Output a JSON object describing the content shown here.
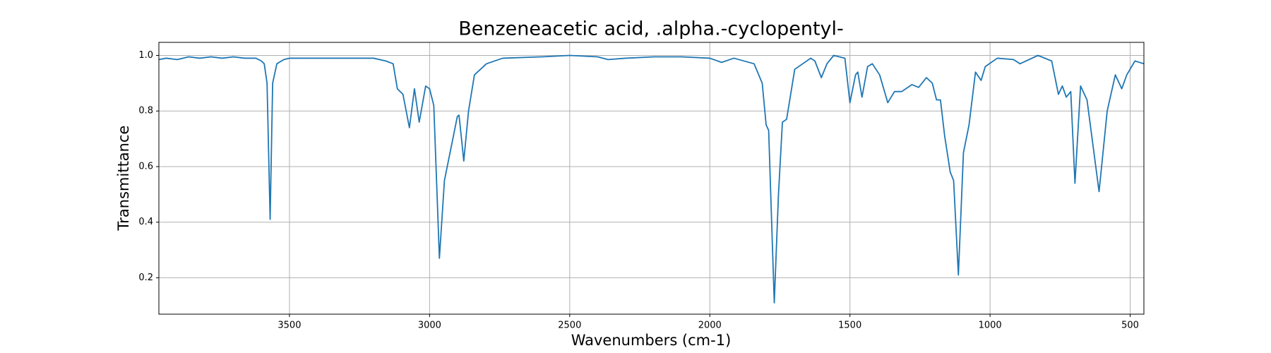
{
  "chart_data": {
    "type": "line",
    "title": "Benzeneacetic acid, .alpha.-cyclopentyl-",
    "x_label": "Wavenumbers (cm-1)",
    "y_label": "Transmittance",
    "xlim": [
      3966,
      451
    ],
    "ylim": [
      0.069,
      1.047
    ],
    "xticks": [
      3500,
      3000,
      2500,
      2000,
      1500,
      1000,
      500
    ],
    "yticks": [
      0.2,
      0.4,
      0.6,
      0.8,
      {
        "value": 1,
        "label": "1.0"
      }
    ],
    "grid": true,
    "series": [
      {
        "color": "#1f77b4",
        "x": [
          3966,
          3940,
          3900,
          3860,
          3820,
          3780,
          3740,
          3700,
          3660,
          3620,
          3600,
          3590,
          3580,
          3569,
          3560,
          3545,
          3520,
          3500,
          3400,
          3300,
          3200,
          3156,
          3130,
          3115,
          3095,
          3072,
          3054,
          3037,
          3014,
          3000,
          2985,
          2965,
          2947,
          2927,
          2901,
          2895,
          2884,
          2878,
          2861,
          2840,
          2797,
          2739,
          2600,
          2500,
          2400,
          2363,
          2300,
          2200,
          2100,
          2000,
          1958,
          1914,
          1842,
          1813,
          1799,
          1790,
          1770,
          1755,
          1741,
          1726,
          1697,
          1640,
          1625,
          1602,
          1582,
          1558,
          1518,
          1500,
          1480,
          1472,
          1457,
          1437,
          1420,
          1394,
          1365,
          1341,
          1315,
          1279,
          1255,
          1227,
          1206,
          1191,
          1177,
          1162,
          1142,
          1130,
          1113,
          1095,
          1075,
          1052,
          1032,
          1017,
          974,
          916,
          893,
          829,
          780,
          756,
          742,
          728,
          712,
          697,
          677,
          654,
          611,
          582,
          553,
          530,
          512,
          483,
          451
        ],
        "values": [
          0.985,
          0.99,
          0.985,
          0.995,
          0.99,
          0.995,
          0.99,
          0.995,
          0.99,
          0.99,
          0.98,
          0.97,
          0.9,
          0.41,
          0.9,
          0.97,
          0.985,
          0.99,
          0.99,
          0.99,
          0.99,
          0.98,
          0.97,
          0.88,
          0.86,
          0.74,
          0.88,
          0.76,
          0.89,
          0.88,
          0.82,
          0.27,
          0.55,
          0.65,
          0.78,
          0.785,
          0.68,
          0.62,
          0.8,
          0.93,
          0.97,
          0.99,
          0.995,
          1.0,
          0.995,
          0.985,
          0.99,
          0.995,
          0.995,
          0.99,
          0.975,
          0.99,
          0.97,
          0.9,
          0.75,
          0.73,
          0.11,
          0.5,
          0.76,
          0.77,
          0.95,
          0.99,
          0.98,
          0.92,
          0.97,
          1.0,
          0.99,
          0.83,
          0.93,
          0.94,
          0.85,
          0.96,
          0.97,
          0.93,
          0.83,
          0.87,
          0.87,
          0.895,
          0.885,
          0.92,
          0.9,
          0.84,
          0.84,
          0.71,
          0.58,
          0.55,
          0.21,
          0.65,
          0.75,
          0.94,
          0.91,
          0.96,
          0.99,
          0.985,
          0.97,
          1.0,
          0.98,
          0.86,
          0.89,
          0.85,
          0.87,
          0.54,
          0.89,
          0.84,
          0.51,
          0.8,
          0.93,
          0.88,
          0.93,
          0.98,
          0.97
        ]
      }
    ]
  }
}
